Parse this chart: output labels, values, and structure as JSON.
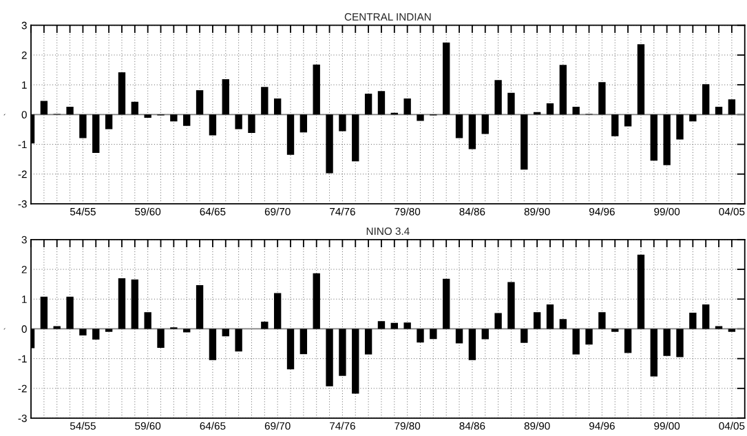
{
  "chart_data": [
    {
      "type": "bar",
      "title": "CENTRAL INDIAN",
      "ylabel": "`",
      "categories": [
        null,
        null,
        null,
        null,
        "54/55",
        null,
        null,
        null,
        null,
        "59/60",
        null,
        null,
        null,
        null,
        "64/65",
        null,
        null,
        null,
        null,
        "69/70",
        null,
        null,
        null,
        null,
        "74/76",
        null,
        null,
        null,
        null,
        "79/80",
        null,
        null,
        null,
        null,
        "84/86",
        null,
        null,
        null,
        null,
        "89/90",
        null,
        null,
        null,
        null,
        "94/96",
        null,
        null,
        null,
        null,
        "99/00",
        null,
        null,
        null,
        null,
        "04/05"
      ],
      "series": [
        {
          "color": "#000000",
          "values": [
            -0.97,
            0.46,
            0.02,
            0.26,
            -0.79,
            -1.29,
            -0.49,
            1.42,
            0.43,
            -0.11,
            -0.03,
            -0.23,
            -0.38,
            0.82,
            -0.7,
            1.19,
            -0.49,
            -0.62,
            0.93,
            0.54,
            -1.35,
            -0.6,
            1.68,
            -1.97,
            -0.56,
            -1.57,
            0.7,
            0.79,
            0.06,
            0.54,
            -0.21,
            -0.03,
            2.42,
            -0.79,
            -1.16,
            -0.65,
            1.16,
            0.73,
            -1.85,
            0.08,
            0.38,
            1.67,
            0.26,
            0.02,
            1.09,
            -0.73,
            -0.4,
            2.36,
            -1.55,
            -1.7,
            -0.84,
            -0.23,
            1.02,
            0.26,
            0.51
          ]
        }
      ],
      "ylim": [
        -3,
        3
      ],
      "yticks": [
        -3,
        -2,
        -1,
        0,
        1,
        2,
        3
      ],
      "grid": true,
      "ref_lines": [
        {
          "axis": "y",
          "value": 0,
          "color": "#808080"
        }
      ]
    },
    {
      "type": "bar",
      "title": "NINO 3.4",
      "ylabel": "`",
      "categories": [
        null,
        null,
        null,
        null,
        "54/55",
        null,
        null,
        null,
        null,
        "59/60",
        null,
        null,
        null,
        null,
        "64/65",
        null,
        null,
        null,
        null,
        "69/70",
        null,
        null,
        null,
        null,
        "74/76",
        null,
        null,
        null,
        null,
        "79/80",
        null,
        null,
        null,
        null,
        "84/86",
        null,
        null,
        null,
        null,
        "89/90",
        null,
        null,
        null,
        null,
        "94/96",
        null,
        null,
        null,
        null,
        "99/00",
        null,
        null,
        null,
        null,
        "04/05"
      ],
      "series": [
        {
          "color": "#000000",
          "values": [
            -0.65,
            1.08,
            0.09,
            1.08,
            -0.22,
            -0.36,
            -0.1,
            1.7,
            1.66,
            0.56,
            -0.64,
            0.05,
            -0.12,
            1.47,
            -1.05,
            -0.25,
            -0.76,
            0,
            0.24,
            1.2,
            -1.36,
            -0.85,
            1.87,
            -1.93,
            -1.58,
            -2.18,
            -0.86,
            0.26,
            0.2,
            0.21,
            -0.46,
            -0.34,
            1.68,
            -0.49,
            -1.05,
            -0.35,
            0.53,
            1.57,
            -0.47,
            0.56,
            0.82,
            0.33,
            -0.86,
            -0.53,
            0.56,
            -0.1,
            -0.81,
            2.49,
            -1.6,
            -0.91,
            -0.95,
            0.54,
            0.82,
            0.09,
            -0.1
          ]
        }
      ],
      "ylim": [
        -3,
        3
      ],
      "yticks": [
        -3,
        -2,
        -1,
        0,
        1,
        2,
        3
      ],
      "grid": true,
      "ref_lines": [
        {
          "axis": "y",
          "value": 0,
          "color": "#808080"
        }
      ]
    }
  ]
}
